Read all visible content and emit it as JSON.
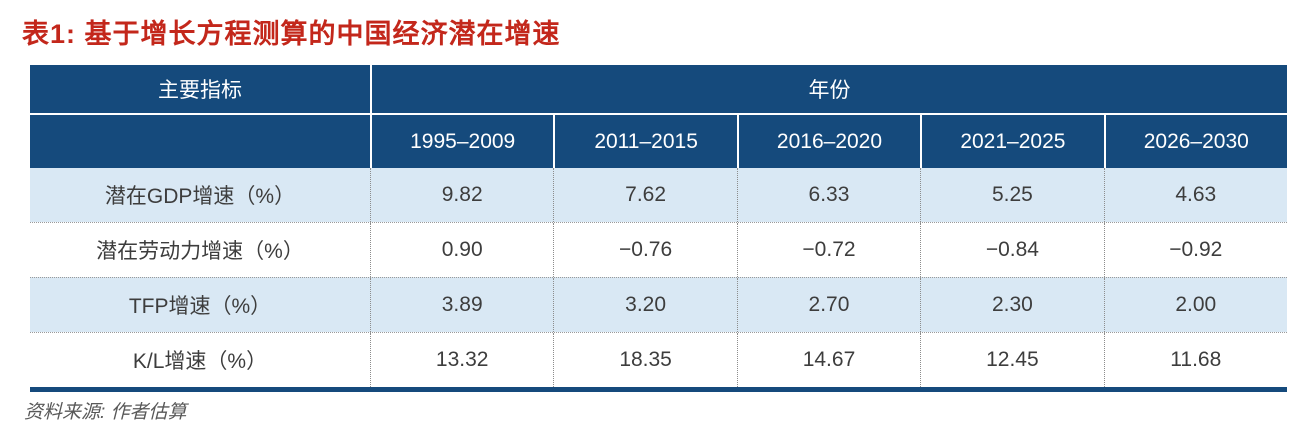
{
  "title": "表1: 基于增长方程测算的中国经济潜在增速",
  "source_note": "资料来源: 作者估算",
  "colors": {
    "title_red": "#c3271b",
    "header_navy": "#154a7c",
    "zebra_blue": "#d9e8f4",
    "data_text": "#3d3d3d",
    "source_gray": "#595959"
  },
  "table": {
    "indicator_header": "主要指标",
    "year_group_header": "年份",
    "period_columns": [
      "1995–2009",
      "2011–2015",
      "2016–2020",
      "2021–2025",
      "2026–2030"
    ],
    "rows": [
      {
        "label": "潜在GDP增速（%）",
        "values": [
          "9.82",
          "7.62",
          "6.33",
          "5.25",
          "4.63"
        ]
      },
      {
        "label": "潜在劳动力增速（%）",
        "values": [
          "0.90",
          "−0.76",
          "−0.72",
          "−0.84",
          "−0.92"
        ]
      },
      {
        "label": "TFP增速（%）",
        "values": [
          "3.89",
          "3.20",
          "2.70",
          "2.30",
          "2.00"
        ]
      },
      {
        "label": "K/L增速（%）",
        "values": [
          "13.32",
          "18.35",
          "14.67",
          "12.45",
          "11.68"
        ]
      }
    ]
  },
  "chart_data": {
    "type": "table",
    "title": "表1: 基于增长方程测算的中国经济潜在增速",
    "columns": [
      "主要指标",
      "1995-2009",
      "2011-2015",
      "2016-2020",
      "2021-2025",
      "2026-2030"
    ],
    "rows": [
      {
        "indicator": "潜在GDP增速(%)",
        "values": [
          9.82,
          7.62,
          6.33,
          5.25,
          4.63
        ]
      },
      {
        "indicator": "潜在劳动力增速(%)",
        "values": [
          0.9,
          -0.76,
          -0.72,
          -0.84,
          -0.92
        ]
      },
      {
        "indicator": "TFP增速(%)",
        "values": [
          3.89,
          3.2,
          2.7,
          2.3,
          2.0
        ]
      },
      {
        "indicator": "K/L增速(%)",
        "values": [
          13.32,
          18.35,
          14.67,
          12.45,
          11.68
        ]
      }
    ],
    "source": "资料来源: 作者估算",
    "layout_hints": {
      "header_bg": "#154a7c",
      "zebra_bg": "#d9e8f4",
      "zebra_rows": [
        0,
        2
      ]
    }
  }
}
